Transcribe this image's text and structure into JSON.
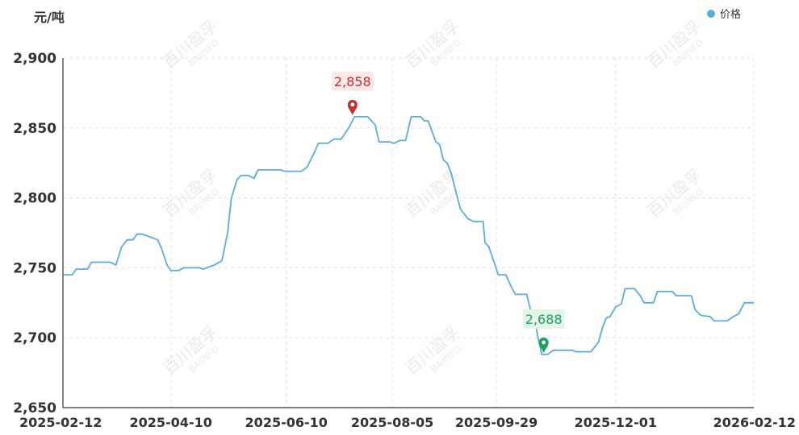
{
  "unit_label": "元/吨",
  "watermark": {
    "cn": "百川盈孚",
    "en": "BAIINFO"
  },
  "chart_data": {
    "type": "line",
    "ylim": [
      2650,
      2900
    ],
    "yticks": [
      2650,
      2700,
      2750,
      2800,
      2850,
      2900
    ],
    "ytick_labels": [
      "2,650",
      "2,700",
      "2,750",
      "2,800",
      "2,850",
      "2,900"
    ],
    "xlim": [
      "2025-02-12",
      "2026-02-12"
    ],
    "xticks": [
      "2025-02-12",
      "2025-04-10",
      "2025-06-10",
      "2025-08-05",
      "2025-09-29",
      "2025-12-01",
      "2026-02-12"
    ],
    "grid": true,
    "legend_position": "top-right",
    "series": [
      {
        "name": "价格",
        "color": "#5aaedc",
        "points": [
          [
            "2025-02-12",
            2745
          ],
          [
            "2025-02-17",
            2745
          ],
          [
            "2025-02-19",
            2749
          ],
          [
            "2025-02-25",
            2749
          ],
          [
            "2025-02-27",
            2754
          ],
          [
            "2025-03-09",
            2754
          ],
          [
            "2025-03-12",
            2752
          ],
          [
            "2025-03-15",
            2765
          ],
          [
            "2025-03-18",
            2770
          ],
          [
            "2025-03-21",
            2770
          ],
          [
            "2025-03-23",
            2774
          ],
          [
            "2025-03-26",
            2774
          ],
          [
            "2025-03-30",
            2772
          ],
          [
            "2025-04-03",
            2770
          ],
          [
            "2025-04-05",
            2764
          ],
          [
            "2025-04-08",
            2752
          ],
          [
            "2025-04-10",
            2748
          ],
          [
            "2025-04-14",
            2748
          ],
          [
            "2025-04-17",
            2750
          ],
          [
            "2025-04-25",
            2750
          ],
          [
            "2025-04-27",
            2749
          ],
          [
            "2025-04-29",
            2750
          ],
          [
            "2025-05-03",
            2752
          ],
          [
            "2025-05-07",
            2755
          ],
          [
            "2025-05-10",
            2775
          ],
          [
            "2025-05-12",
            2800
          ],
          [
            "2025-05-15",
            2813
          ],
          [
            "2025-05-17",
            2816
          ],
          [
            "2025-05-21",
            2816
          ],
          [
            "2025-05-24",
            2814
          ],
          [
            "2025-05-26",
            2820
          ],
          [
            "2025-06-07",
            2820
          ],
          [
            "2025-06-09",
            2819
          ],
          [
            "2025-06-18",
            2819
          ],
          [
            "2025-06-21",
            2822
          ],
          [
            "2025-06-25",
            2833
          ],
          [
            "2025-06-27",
            2839
          ],
          [
            "2025-07-02",
            2839
          ],
          [
            "2025-07-05",
            2842
          ],
          [
            "2025-07-09",
            2842
          ],
          [
            "2025-07-13",
            2850
          ],
          [
            "2025-07-16",
            2858
          ],
          [
            "2025-07-23",
            2858
          ],
          [
            "2025-07-27",
            2852
          ],
          [
            "2025-07-29",
            2840
          ],
          [
            "2025-08-04",
            2840
          ],
          [
            "2025-08-06",
            2839
          ],
          [
            "2025-08-09",
            2841
          ],
          [
            "2025-08-12",
            2841
          ],
          [
            "2025-08-15",
            2858
          ],
          [
            "2025-08-20",
            2858
          ],
          [
            "2025-08-22",
            2855
          ],
          [
            "2025-08-24",
            2855
          ],
          [
            "2025-08-28",
            2840
          ],
          [
            "2025-08-30",
            2838
          ],
          [
            "2025-09-01",
            2827
          ],
          [
            "2025-09-03",
            2825
          ],
          [
            "2025-09-05",
            2818
          ],
          [
            "2025-09-10",
            2792
          ],
          [
            "2025-09-14",
            2785
          ],
          [
            "2025-09-17",
            2783
          ],
          [
            "2025-09-22",
            2783
          ],
          [
            "2025-09-23",
            2768
          ],
          [
            "2025-09-25",
            2765
          ],
          [
            "2025-09-27",
            2757
          ],
          [
            "2025-09-30",
            2745
          ],
          [
            "2025-10-04",
            2745
          ],
          [
            "2025-10-07",
            2736
          ],
          [
            "2025-10-09",
            2731
          ],
          [
            "2025-10-15",
            2731
          ],
          [
            "2025-10-17",
            2720
          ],
          [
            "2025-10-19",
            2715
          ],
          [
            "2025-10-21",
            2700
          ],
          [
            "2025-10-23",
            2688
          ],
          [
            "2025-10-26",
            2688
          ],
          [
            "2025-10-29",
            2691
          ],
          [
            "2025-11-08",
            2691
          ],
          [
            "2025-11-10",
            2690
          ],
          [
            "2025-11-18",
            2690
          ],
          [
            "2025-11-22",
            2697
          ],
          [
            "2025-11-24",
            2707
          ],
          [
            "2025-11-26",
            2714
          ],
          [
            "2025-11-28",
            2715
          ],
          [
            "2025-12-01",
            2722
          ],
          [
            "2025-12-04",
            2724
          ],
          [
            "2025-12-06",
            2735
          ],
          [
            "2025-12-11",
            2735
          ],
          [
            "2025-12-14",
            2730
          ],
          [
            "2025-12-16",
            2725
          ],
          [
            "2025-12-21",
            2725
          ],
          [
            "2025-12-23",
            2733
          ],
          [
            "2025-12-31",
            2733
          ],
          [
            "2026-01-02",
            2730
          ],
          [
            "2026-01-10",
            2730
          ],
          [
            "2026-01-12",
            2720
          ],
          [
            "2026-01-15",
            2716
          ],
          [
            "2026-01-20",
            2715
          ],
          [
            "2026-01-22",
            2712
          ],
          [
            "2026-01-29",
            2712
          ],
          [
            "2026-02-01",
            2715
          ],
          [
            "2026-02-04",
            2717
          ],
          [
            "2026-02-07",
            2725
          ],
          [
            "2026-02-12",
            2725
          ]
        ]
      }
    ],
    "annotations": [
      {
        "kind": "max",
        "date": "2025-07-15",
        "value": 2858,
        "label": "2,858",
        "color": "#c23531",
        "bg": "#fbe9e9"
      },
      {
        "kind": "min",
        "date": "2025-10-24",
        "value": 2688,
        "label": "2,688",
        "color": "#1aa35a",
        "bg": "#e3f5e9"
      }
    ]
  }
}
